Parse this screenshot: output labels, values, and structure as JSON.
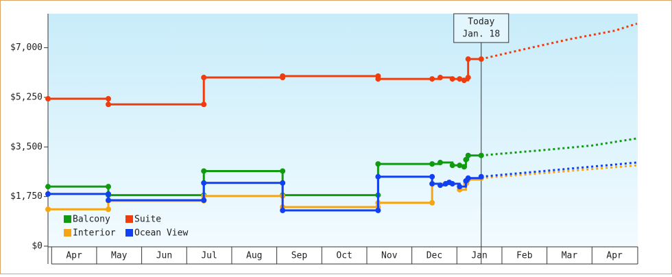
{
  "chart_data": {
    "type": "step-line",
    "xlim": [
      -0.08,
      13
    ],
    "ylim": [
      0,
      8200
    ],
    "xticks": [
      {
        "value": 0,
        "label": "Apr"
      },
      {
        "value": 1,
        "label": "May"
      },
      {
        "value": 2,
        "label": "Jun"
      },
      {
        "value": 3,
        "label": "Jul"
      },
      {
        "value": 4,
        "label": "Aug"
      },
      {
        "value": 5,
        "label": "Sep"
      },
      {
        "value": 6,
        "label": "Oct"
      },
      {
        "value": 7,
        "label": "Nov"
      },
      {
        "value": 8,
        "label": "Dec"
      },
      {
        "value": 9,
        "label": "Jan"
      },
      {
        "value": 10,
        "label": "Feb"
      },
      {
        "value": 11,
        "label": "Mar"
      },
      {
        "value": 12,
        "label": "Apr"
      }
    ],
    "yticks": [
      {
        "value": 0,
        "label": "$0"
      },
      {
        "value": 1750,
        "label": "$1,750"
      },
      {
        "value": 3500,
        "label": "$3,500"
      },
      {
        "value": 5250,
        "label": "$5,250"
      },
      {
        "value": 7000,
        "label": "$7,000"
      }
    ],
    "today": {
      "x": 9.54,
      "label": [
        "Today",
        "Jan. 18"
      ]
    },
    "series": [
      {
        "name": "Balcony",
        "color": "#109a10",
        "x": [
          -0.08,
          1.26,
          1.26,
          3.38,
          3.38,
          5.13,
          5.13,
          7.25,
          7.25,
          8.45,
          8.63,
          8.9,
          9.06,
          9.16,
          9.2,
          9.25,
          9.54
        ],
        "values": [
          2100,
          2100,
          1800,
          1800,
          2650,
          2650,
          1800,
          1800,
          2900,
          2900,
          2950,
          2850,
          2850,
          2800,
          3050,
          3200,
          3200
        ],
        "projected_x": [
          9.54,
          11,
          12,
          13
        ],
        "projected_values": [
          3200,
          3400,
          3550,
          3800
        ]
      },
      {
        "name": "Suite",
        "color": "#f03c0c",
        "x": [
          -0.08,
          1.26,
          1.26,
          3.38,
          3.38,
          5.13,
          5.13,
          7.25,
          7.25,
          8.45,
          8.63,
          8.9,
          9.06,
          9.16,
          9.25,
          9.25,
          9.54
        ],
        "values": [
          5200,
          5200,
          5000,
          5000,
          5950,
          5950,
          6000,
          6000,
          5900,
          5900,
          5950,
          5900,
          5900,
          5850,
          5950,
          6600,
          6600
        ],
        "projected_x": [
          9.54,
          10.5,
          11.5,
          12.5,
          13
        ],
        "projected_values": [
          6600,
          6950,
          7300,
          7600,
          7850
        ]
      },
      {
        "name": "Interior",
        "color": "#f5a514",
        "x": [
          -0.08,
          1.26,
          1.26,
          3.38,
          3.38,
          5.13,
          5.13,
          7.25,
          7.25,
          8.45,
          8.45,
          8.75,
          9.06,
          9.2,
          9.25,
          9.54
        ],
        "values": [
          1300,
          1300,
          1600,
          1600,
          1770,
          1770,
          1380,
          1380,
          1530,
          1530,
          2200,
          2200,
          1990,
          2200,
          2350,
          2400
        ],
        "projected_x": [
          9.54,
          13
        ],
        "projected_values": [
          2400,
          2850
        ]
      },
      {
        "name": "Ocean View",
        "color": "#1040f0",
        "x": [
          -0.08,
          1.26,
          1.26,
          3.38,
          3.38,
          5.13,
          5.13,
          7.25,
          7.25,
          8.45,
          8.45,
          8.63,
          8.75,
          8.83,
          8.9,
          9.06,
          9.2,
          9.25,
          9.54
        ],
        "values": [
          1840,
          1840,
          1620,
          1620,
          2230,
          2230,
          1260,
          1260,
          2450,
          2450,
          2200,
          2150,
          2200,
          2250,
          2200,
          2100,
          2300,
          2400,
          2450
        ],
        "projected_x": [
          9.54,
          13
        ],
        "projected_values": [
          2450,
          2950
        ]
      }
    ]
  }
}
